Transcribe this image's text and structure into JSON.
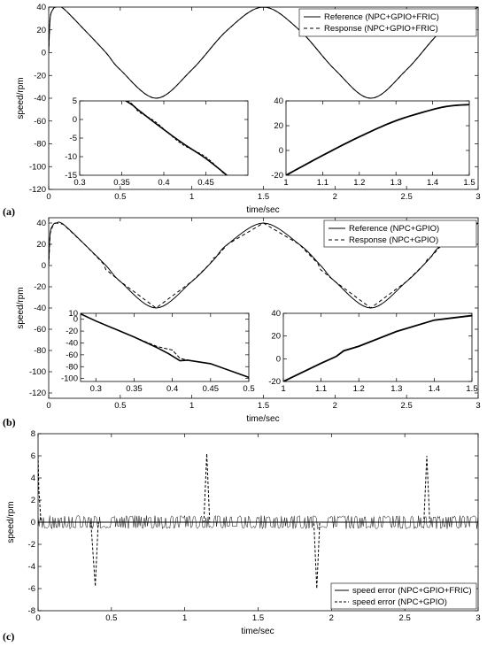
{
  "chart_data": [
    {
      "id": "a",
      "panel_label": "(a)",
      "type": "line",
      "xlabel": "time/sec",
      "ylabel": "speed/rpm",
      "xlim": [
        0,
        3
      ],
      "ylim": [
        -120,
        40
      ],
      "xticks": [
        "0",
        "0.5",
        "1",
        "1.5",
        "2",
        "2.5",
        "3"
      ],
      "yticks": [
        "40",
        "20",
        "0",
        "-20",
        "-40",
        "-60",
        "-80",
        "-100",
        "-120"
      ],
      "legend_position": "top-right",
      "series": [
        {
          "name": "Reference (NPC+GPIO+FRIC)",
          "style": "solid",
          "x": [
            0,
            0.01,
            0.03,
            0.05,
            0.1,
            0.25,
            0.4,
            0.5,
            0.75,
            1,
            1.25,
            1.5,
            1.75,
            2,
            2.25,
            2.5,
            2.75,
            3
          ],
          "y": [
            0,
            30,
            38,
            40,
            39,
            20,
            0,
            -15,
            -40,
            -15,
            20,
            40,
            20,
            -15,
            -40,
            -15,
            20,
            40
          ]
        },
        {
          "name": "Response (NPC+GPIO+FRIC)",
          "style": "dashed",
          "x": [
            0,
            0.01,
            0.03,
            0.05,
            0.1,
            0.25,
            0.4,
            0.5,
            0.75,
            1,
            1.25,
            1.5,
            1.75,
            2,
            2.25,
            2.5,
            2.75,
            3
          ],
          "y": [
            0,
            30,
            38,
            40,
            39,
            20,
            0,
            -15,
            -40,
            -15,
            20,
            40,
            20,
            -15,
            -40,
            -15,
            20,
            40
          ]
        }
      ],
      "insets": [
        {
          "xlim": [
            0.3,
            0.5
          ],
          "ylim": [
            -15,
            5
          ],
          "xticks": [
            "0.3",
            "0.35",
            "0.4",
            "0.45"
          ],
          "yticks": [
            "5",
            "0",
            "-5",
            "-10",
            "-15"
          ],
          "x": [
            0.3,
            0.355,
            0.37,
            0.39,
            0.42,
            0.45,
            0.475
          ],
          "y": [
            12,
            5,
            2.5,
            -1,
            -6,
            -10.5,
            -15
          ]
        },
        {
          "xlim": [
            1,
            1.5
          ],
          "ylim": [
            -20,
            40
          ],
          "xticks": [
            "1",
            "1.1",
            "1.2",
            "1.3",
            "1.4",
            "1.5"
          ],
          "yticks": [
            "40",
            "20",
            "0",
            "-20"
          ],
          "x": [
            1,
            1.1,
            1.2,
            1.3,
            1.4,
            1.45,
            1.5
          ],
          "y": [
            -20,
            -4,
            11,
            24,
            33,
            36,
            37
          ]
        }
      ]
    },
    {
      "id": "b",
      "panel_label": "(b)",
      "type": "line",
      "xlabel": "time/sec",
      "ylabel": "speed/rpm",
      "xlim": [
        0,
        3
      ],
      "ylim": [
        -125,
        45
      ],
      "xticks": [
        "0",
        "0.5",
        "1",
        "1.5",
        "2",
        "2.5",
        "3"
      ],
      "yticks": [
        "40",
        "20",
        "0",
        "-20",
        "-40",
        "-60",
        "-80",
        "-100",
        "-120"
      ],
      "legend_position": "top-right",
      "series": [
        {
          "name": "Reference (NPC+GPIO)",
          "style": "solid",
          "x": [
            0,
            0.01,
            0.03,
            0.05,
            0.1,
            0.25,
            0.4,
            0.5,
            0.75,
            1,
            1.15,
            1.25,
            1.5,
            1.75,
            1.9,
            2,
            2.25,
            2.5,
            2.65,
            2.75,
            3
          ],
          "y": [
            0,
            30,
            38,
            40,
            39,
            20,
            0,
            -15,
            -40,
            -15,
            5,
            20,
            40,
            20,
            0,
            -15,
            -40,
            -15,
            5,
            20,
            40
          ]
        },
        {
          "name": "Response (NPC+GPIO)",
          "style": "dashed",
          "x": [
            0,
            0.01,
            0.03,
            0.05,
            0.1,
            0.25,
            0.38,
            0.4,
            0.42,
            0.5,
            0.75,
            1,
            1.13,
            1.15,
            1.17,
            1.25,
            1.5,
            1.75,
            1.88,
            1.9,
            1.92,
            2,
            2.25,
            2.5,
            2.63,
            2.65,
            2.67,
            2.75,
            3
          ],
          "y": [
            0,
            30,
            38,
            40,
            39,
            20,
            2,
            -4,
            -6,
            -15,
            -40,
            -15,
            2,
            7,
            8,
            20,
            40,
            20,
            2,
            -4,
            -6,
            -15,
            -40,
            -15,
            2,
            7,
            8,
            20,
            40
          ]
        }
      ],
      "insets": [
        {
          "xlim": [
            0.28,
            0.5
          ],
          "ylim": [
            -105,
            10
          ],
          "xticks": [
            "0.3",
            "0.35",
            "0.4",
            "0.45",
            "0.5"
          ],
          "yticks": [
            "10",
            "0",
            "-20",
            "-40",
            "-60",
            "-80",
            "-100"
          ],
          "x": [
            0.28,
            0.3,
            0.35,
            0.38,
            0.395,
            0.41,
            0.42,
            0.45,
            0.5
          ],
          "y": [
            9,
            -3,
            -30,
            -48,
            -58,
            -70,
            -69,
            -75,
            -98
          ]
        },
        {
          "xlim": [
            1,
            1.5
          ],
          "ylim": [
            -20,
            40
          ],
          "xticks": [
            "1",
            "1.1",
            "1.2",
            "1.3",
            "1.4",
            "1.5"
          ],
          "yticks": [
            "40",
            "20",
            "0",
            "-20"
          ],
          "x": [
            1,
            1.1,
            1.14,
            1.16,
            1.2,
            1.3,
            1.4,
            1.5
          ],
          "y": [
            -20,
            -4,
            2,
            7,
            11,
            24,
            34,
            38
          ]
        }
      ]
    },
    {
      "id": "c",
      "panel_label": "(c)",
      "type": "line",
      "xlabel": "time/sec",
      "ylabel": "speed/rpm",
      "xlim": [
        0,
        3
      ],
      "ylim": [
        -8,
        8
      ],
      "xticks": [
        "0",
        "0.5",
        "1",
        "1.5",
        "2",
        "2.5",
        "3"
      ],
      "yticks": [
        "8",
        "6",
        "4",
        "2",
        "0",
        "-2",
        "-4",
        "-6",
        "-8"
      ],
      "legend_position": "bottom-right",
      "series": [
        {
          "name": "speed error (NPC+GPIO+FRIC)",
          "style": "solid",
          "x": [
            0,
            0.5,
            1,
            1.5,
            2,
            2.5,
            3
          ],
          "y": [
            0,
            0,
            0,
            0,
            0,
            0,
            0
          ]
        },
        {
          "name": "speed error (NPC+GPIO)",
          "style": "dashed",
          "x": [
            0,
            0.005,
            0.02,
            0.36,
            0.39,
            0.41,
            1.13,
            1.15,
            1.17,
            1.88,
            1.9,
            1.92,
            2.63,
            2.65,
            2.67,
            3
          ],
          "y": [
            6,
            3,
            0,
            0,
            -5.8,
            0,
            0,
            6.2,
            0,
            0,
            -6,
            0,
            0,
            6,
            0,
            0
          ]
        }
      ]
    }
  ]
}
